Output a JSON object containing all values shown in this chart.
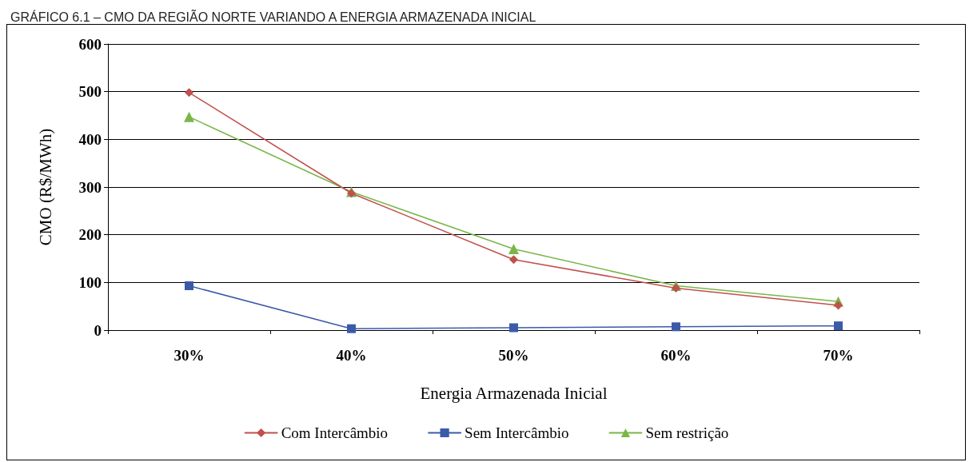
{
  "chart_data": {
    "type": "line",
    "title": "GRÁFICO 6.1 – CMO DA REGIÃO NORTE VARIANDO A ENERGIA ARMAZENADA INICIAL",
    "xlabel": "Energia Armazenada Inicial",
    "ylabel": "CMO (R$/MWh)",
    "categories": [
      "30%",
      "40%",
      "50%",
      "60%",
      "70%"
    ],
    "series": [
      {
        "name": "Com Intercâmbio",
        "color": "#c0504d",
        "marker": "diamond",
        "values": [
          498,
          287,
          148,
          88,
          52
        ]
      },
      {
        "name": "Sem Intercâmbio",
        "color": "#3b5ba8",
        "marker": "square",
        "values": [
          93,
          3,
          5,
          7,
          9
        ]
      },
      {
        "name": "Sem restrição",
        "color": "#7ab648",
        "marker": "triangle",
        "values": [
          447,
          290,
          170,
          93,
          60
        ]
      }
    ],
    "ylim": [
      0,
      600
    ],
    "yticks": [
      0,
      100,
      200,
      300,
      400,
      500,
      600
    ],
    "grid": "y",
    "legend": "bottom"
  }
}
